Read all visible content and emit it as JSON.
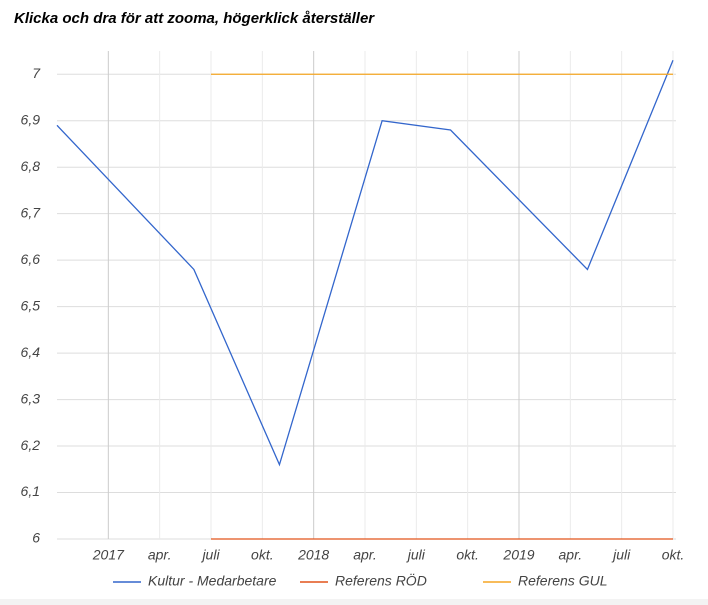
{
  "chart_data": {
    "type": "line",
    "title": "Klicka och dra för att zooma, högerklick återställer",
    "xlim": [
      "2016-10",
      "2019-10"
    ],
    "xticks": [
      {
        "value": "2017-01",
        "label": "2017"
      },
      {
        "value": "2017-04",
        "label": "apr."
      },
      {
        "value": "2017-07",
        "label": "juli"
      },
      {
        "value": "2017-10",
        "label": "okt."
      },
      {
        "value": "2018-01",
        "label": "2018"
      },
      {
        "value": "2018-04",
        "label": "apr."
      },
      {
        "value": "2018-07",
        "label": "juli"
      },
      {
        "value": "2018-10",
        "label": "okt."
      },
      {
        "value": "2019-01",
        "label": "2019"
      },
      {
        "value": "2019-04",
        "label": "apr."
      },
      {
        "value": "2019-07",
        "label": "juli"
      },
      {
        "value": "2019-10",
        "label": "okt."
      }
    ],
    "ylim": [
      6,
      7.05
    ],
    "yticks": [
      6,
      {
        "value": 6.1,
        "label": "6,1"
      },
      {
        "value": 6.2,
        "label": "6,2"
      },
      {
        "value": 6.3,
        "label": "6,3"
      },
      {
        "value": 6.4,
        "label": "6,4"
      },
      {
        "value": 6.5,
        "label": "6,5"
      },
      {
        "value": 6.6,
        "label": "6,6"
      },
      {
        "value": 6.7,
        "label": "6,7"
      },
      {
        "value": 6.8,
        "label": "6,8"
      },
      {
        "value": 6.9,
        "label": "6,9"
      },
      7
    ],
    "grid": true,
    "legend": "bottom",
    "series": [
      {
        "name": "Kultur - Medarbetare",
        "color": "#3366cc",
        "x": [
          "2016-10",
          "2017-06",
          "2017-11",
          "2018-05",
          "2018-09",
          "2019-05",
          "2019-10"
        ],
        "values": [
          6.89,
          6.58,
          6.16,
          6.9,
          6.88,
          6.58,
          7.03
        ]
      },
      {
        "name": "Referens RÖD",
        "color": "#e2541a",
        "x": [
          "2017-07",
          "2019-10"
        ],
        "values": [
          6,
          6
        ]
      },
      {
        "name": "Referens GUL",
        "color": "#f5a623",
        "x": [
          "2017-07",
          "2019-10"
        ],
        "values": [
          7,
          7
        ]
      }
    ]
  }
}
